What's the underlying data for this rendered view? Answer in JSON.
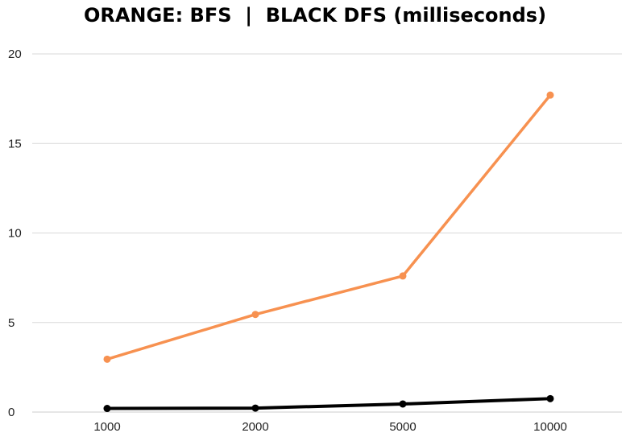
{
  "chart_data": {
    "type": "line",
    "title": "ORANGE: BFS  |  BLACK DFS (milliseconds)",
    "categories": [
      "1000",
      "2000",
      "5000",
      "10000"
    ],
    "xlabel": "",
    "ylabel": "",
    "ylim": [
      0,
      20
    ],
    "yticks": [
      0,
      5,
      10,
      15,
      20
    ],
    "grid": true,
    "legend": "none",
    "series": [
      {
        "values": [
          2.95,
          5.45,
          7.6,
          17.7
        ],
        "color": "#f79150"
      },
      {
        "values": [
          0.2,
          0.22,
          0.45,
          0.75
        ],
        "color": "#000000"
      }
    ]
  }
}
